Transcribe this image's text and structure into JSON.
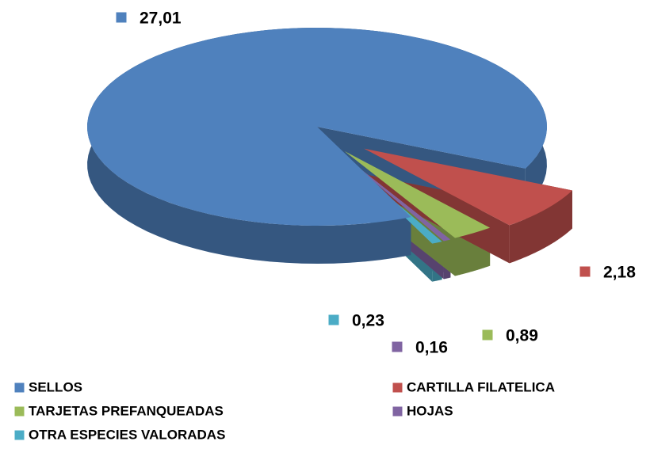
{
  "chart_data": {
    "type": "pie3d",
    "categories": [
      "SELLOS",
      "CARTILLA FILATELICA",
      "TARJETAS PREFANQUEADAS",
      "HOJAS",
      "OTRA ESPECIES VALORADAS"
    ],
    "values": [
      27.01,
      2.18,
      0.89,
      0.16,
      0.23
    ],
    "value_labels": [
      "27,01",
      "2,18",
      "0,89",
      "0,16",
      "0,23"
    ],
    "colors": [
      "#4f81bd",
      "#c0504d",
      "#9bbb59",
      "#8064a2",
      "#4bacc6"
    ],
    "legend": "bottom"
  }
}
